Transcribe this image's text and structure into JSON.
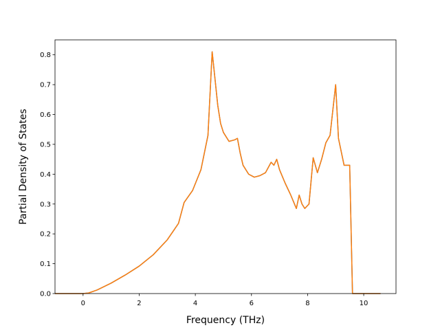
{
  "chart_data": {
    "type": "line",
    "title": "",
    "xlabel": "Frequency (THz)",
    "ylabel": "Partial Density of States",
    "xlim": [
      -1.0,
      11.15
    ],
    "ylim": [
      0.0,
      0.85
    ],
    "xticks": [
      0,
      2,
      4,
      6,
      8,
      10
    ],
    "yticks": [
      0.0,
      0.1,
      0.2,
      0.3,
      0.4,
      0.5,
      0.6,
      0.7,
      0.8
    ],
    "grid": false,
    "legend": "none",
    "series": [
      {
        "color": "#1f77b4",
        "x": [
          -1.0,
          0.0,
          0.2,
          0.5,
          1.0,
          1.5,
          2.0,
          2.5,
          3.0,
          3.4,
          3.6,
          3.9,
          4.2,
          4.45,
          4.6,
          4.7,
          4.8,
          4.9,
          5.0,
          5.2,
          5.4,
          5.5,
          5.6,
          5.7,
          5.9,
          6.1,
          6.3,
          6.5,
          6.7,
          6.8,
          6.9,
          7.0,
          7.2,
          7.4,
          7.6,
          7.7,
          7.8,
          7.9,
          8.05,
          8.2,
          8.35,
          8.5,
          8.65,
          8.8,
          9.0,
          9.1,
          9.3,
          9.5,
          9.6,
          9.7,
          10.0,
          10.6
        ],
        "y": [
          0.0,
          0.0,
          0.002,
          0.012,
          0.035,
          0.062,
          0.092,
          0.13,
          0.18,
          0.235,
          0.305,
          0.345,
          0.415,
          0.53,
          0.81,
          0.72,
          0.63,
          0.57,
          0.54,
          0.51,
          0.515,
          0.52,
          0.47,
          0.43,
          0.4,
          0.39,
          0.395,
          0.405,
          0.44,
          0.43,
          0.45,
          0.415,
          0.37,
          0.33,
          0.285,
          0.33,
          0.3,
          0.285,
          0.3,
          0.455,
          0.405,
          0.45,
          0.505,
          0.53,
          0.7,
          0.52,
          0.43,
          0.43,
          0.0,
          0.0,
          0.0,
          0.0
        ]
      },
      {
        "color": "#ff7f0e",
        "x": [
          -1.0,
          0.0,
          0.2,
          0.5,
          1.0,
          1.5,
          2.0,
          2.5,
          3.0,
          3.4,
          3.6,
          3.9,
          4.2,
          4.45,
          4.6,
          4.7,
          4.8,
          4.9,
          5.0,
          5.2,
          5.4,
          5.5,
          5.6,
          5.7,
          5.9,
          6.1,
          6.3,
          6.5,
          6.7,
          6.8,
          6.9,
          7.0,
          7.2,
          7.4,
          7.6,
          7.7,
          7.8,
          7.9,
          8.05,
          8.2,
          8.35,
          8.5,
          8.65,
          8.8,
          9.0,
          9.1,
          9.3,
          9.5,
          9.6,
          9.7,
          10.0,
          10.6
        ],
        "y": [
          0.0,
          0.0,
          0.002,
          0.012,
          0.035,
          0.062,
          0.092,
          0.13,
          0.18,
          0.235,
          0.305,
          0.345,
          0.415,
          0.53,
          0.81,
          0.72,
          0.63,
          0.57,
          0.54,
          0.51,
          0.515,
          0.52,
          0.47,
          0.43,
          0.4,
          0.39,
          0.395,
          0.405,
          0.44,
          0.43,
          0.45,
          0.415,
          0.37,
          0.33,
          0.285,
          0.33,
          0.3,
          0.285,
          0.3,
          0.455,
          0.405,
          0.45,
          0.505,
          0.53,
          0.7,
          0.52,
          0.43,
          0.43,
          0.0,
          0.0,
          0.0,
          0.0
        ]
      }
    ]
  }
}
